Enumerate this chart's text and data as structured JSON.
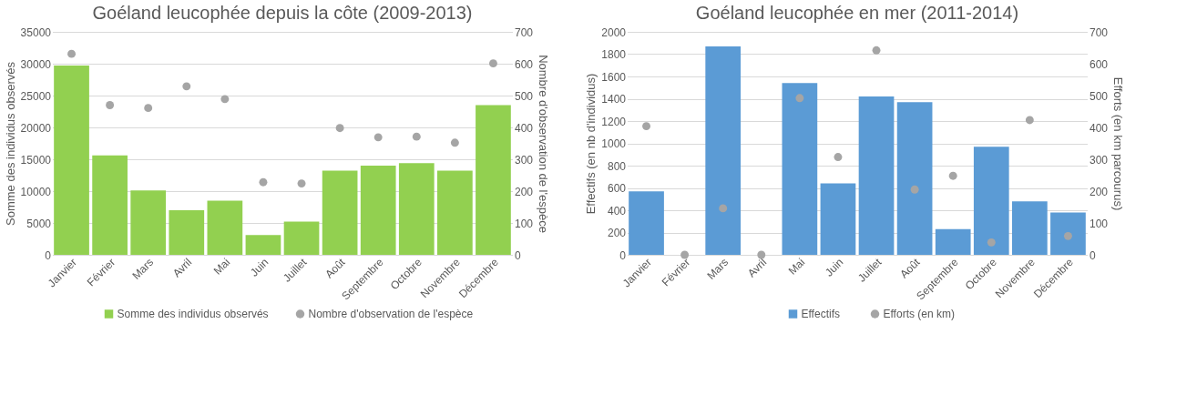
{
  "chart_data": [
    {
      "type": "bar",
      "title": "Goéland leucophée depuis la côte (2009-2013)",
      "categories": [
        "Janvier",
        "Février",
        "Mars",
        "Avril",
        "Mai",
        "Juin",
        "Juillet",
        "Août",
        "Septembre",
        "Octobre",
        "Novembre",
        "Décembre"
      ],
      "series": [
        {
          "name": "Somme des individus observés",
          "color": "#92d050",
          "values": [
            29700,
            15600,
            10100,
            7000,
            8500,
            3100,
            5200,
            13200,
            14000,
            14400,
            13200,
            23500
          ]
        },
        {
          "name": "Nombre d'observation de l'espèce",
          "type": "scatter",
          "axis": "y2",
          "color": "#a5a5a5",
          "values": [
            631,
            470,
            461,
            529,
            489,
            228,
            224,
            398,
            369,
            371,
            352,
            601
          ]
        }
      ],
      "ylabel": "Somme des individus observés",
      "y2label": "Nombre d'observation de l'espèce",
      "ylim": [
        0,
        35000
      ],
      "yticks": [
        0,
        5000,
        10000,
        15000,
        20000,
        25000,
        30000,
        35000
      ],
      "y2lim": [
        0,
        700
      ],
      "y2ticks": [
        0,
        100,
        200,
        300,
        400,
        500,
        600,
        700
      ],
      "grid": "y",
      "legend": "bottom"
    },
    {
      "type": "bar",
      "title": "Goéland leucophée en mer (2011-2014)",
      "categories": [
        "Janvier",
        "Février",
        "Mars",
        "Avril",
        "Mai",
        "Juin",
        "Juillet",
        "Août",
        "Septembre",
        "Octobre",
        "Novembre",
        "Décembre"
      ],
      "series": [
        {
          "name": "Effectifs",
          "color": "#5b9bd5",
          "values": [
            570,
            0,
            1870,
            0,
            1540,
            640,
            1420,
            1370,
            230,
            970,
            480,
            380
          ]
        },
        {
          "name": "Efforts (en km)",
          "type": "scatter",
          "axis": "y2",
          "color": "#a5a5a5",
          "values": [
            404,
            0,
            146,
            0,
            492,
            307,
            642,
            205,
            248,
            39,
            423,
            59
          ]
        }
      ],
      "ylabel": "Effectifs (en nb d'individus)",
      "y2label": "Efforts (en km parcourus)",
      "ylim": [
        0,
        2000
      ],
      "yticks": [
        0,
        200,
        400,
        600,
        800,
        1000,
        1200,
        1400,
        1600,
        1800,
        2000
      ],
      "y2lim": [
        0,
        700
      ],
      "y2ticks": [
        0,
        100,
        200,
        300,
        400,
        500,
        600,
        700
      ],
      "grid": "y",
      "legend": "bottom"
    }
  ]
}
